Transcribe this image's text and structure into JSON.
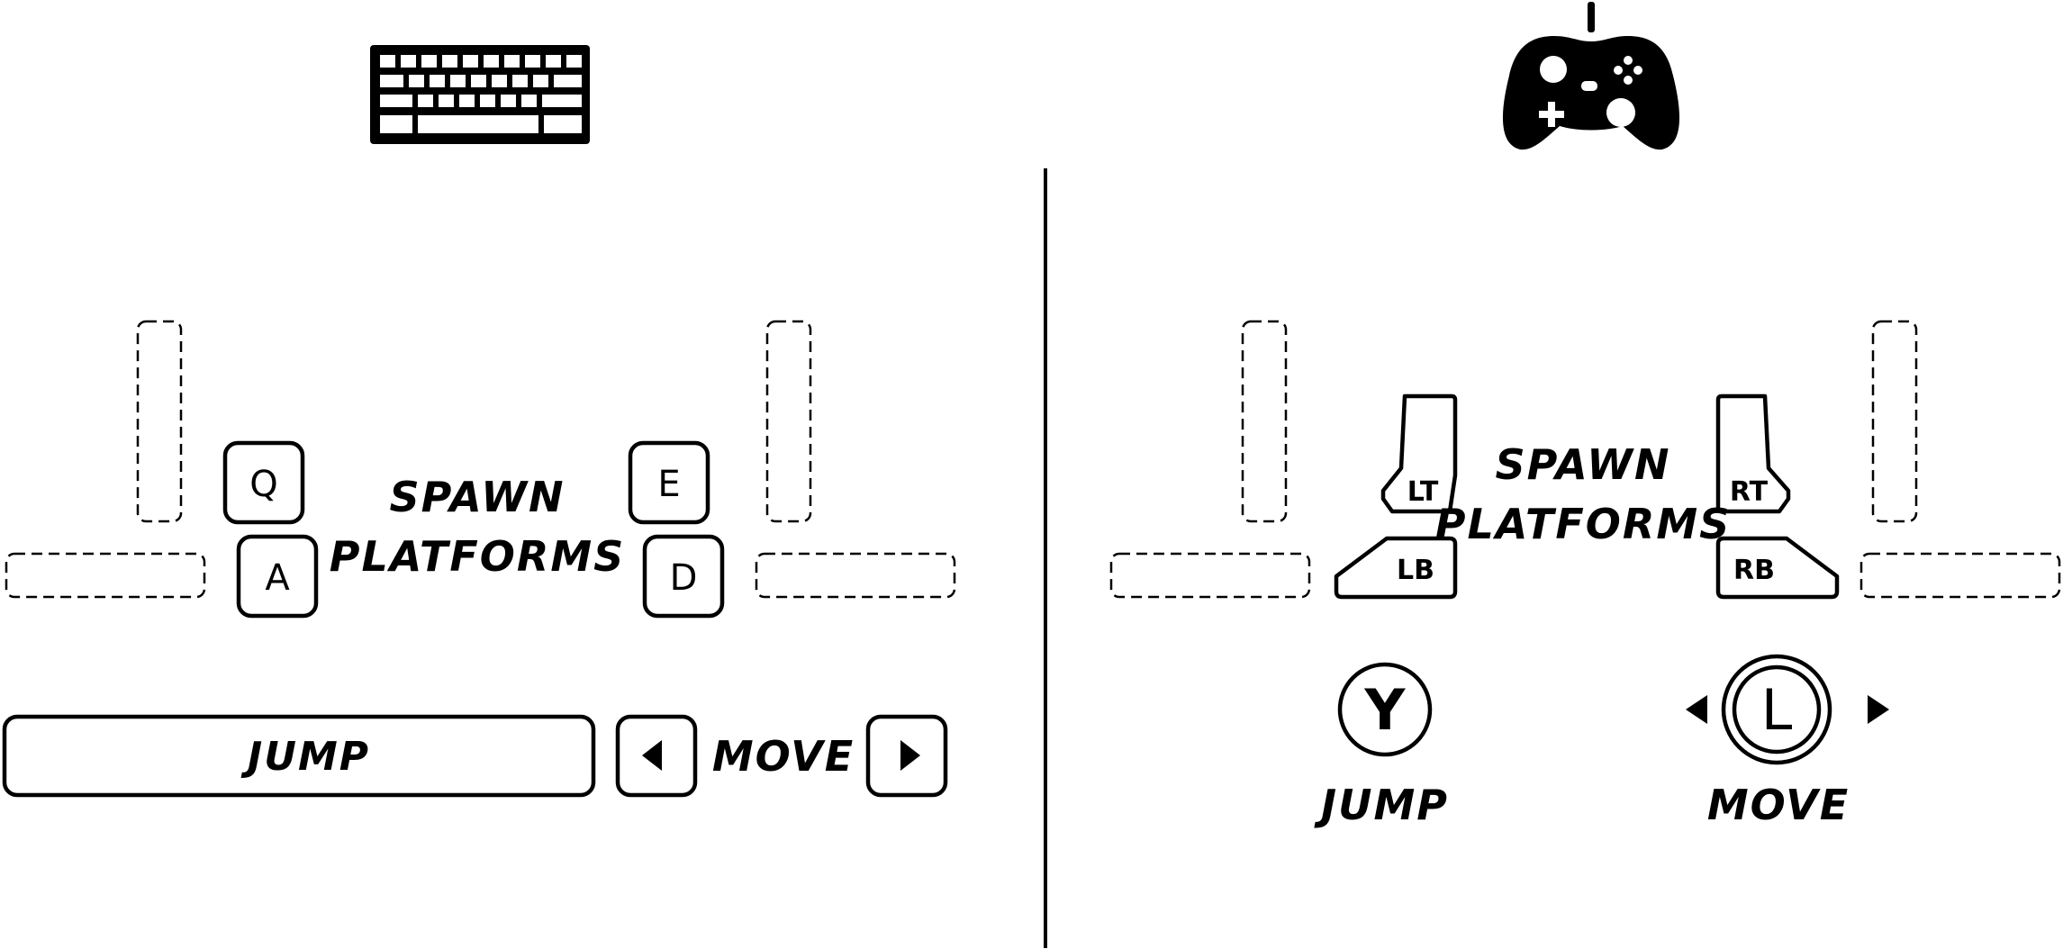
{
  "keyboard": {
    "device_icon": "keyboard-icon",
    "keys": {
      "q": "Q",
      "a": "A",
      "e": "E",
      "d": "D"
    },
    "spawn_label_line1": "SPAWN",
    "spawn_label_line2": "PLATFORMS",
    "jump_label": "JUMP",
    "move_label": "MOVE",
    "left_arrow_icon": "arrow-left-icon",
    "right_arrow_icon": "arrow-right-icon"
  },
  "gamepad": {
    "device_icon": "gamepad-icon",
    "lt": "LT",
    "lb": "LB",
    "rt": "RT",
    "rb": "RB",
    "spawn_label_line1": "SPAWN",
    "spawn_label_line2": "PLATFORMS",
    "y_button": "Y",
    "l_stick": "L",
    "jump_label": "JUMP",
    "move_label": "MOVE"
  }
}
